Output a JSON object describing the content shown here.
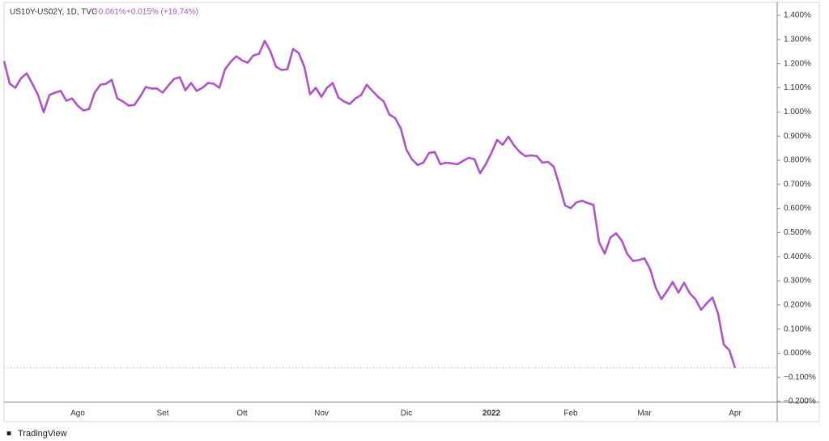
{
  "chart_data": {
    "type": "line",
    "title": "US10Y-US02Y, 1D, TVC",
    "last_value_label": "−0.061%",
    "change_label": "+0.015% (+19.74%)",
    "watermark": "TradingView",
    "color": "#b052c8",
    "grid": false,
    "ylim": [
      -0.203,
      1.454
    ],
    "yticks": [
      {
        "value": 1.4,
        "label": "1.400%"
      },
      {
        "value": 1.3,
        "label": "1.300%"
      },
      {
        "value": 1.2,
        "label": "1.200%"
      },
      {
        "value": 1.1,
        "label": "1.100%"
      },
      {
        "value": 1.0,
        "label": "1.000%"
      },
      {
        "value": 0.9,
        "label": "0.900%"
      },
      {
        "value": 0.8,
        "label": "0.800%"
      },
      {
        "value": 0.7,
        "label": "0.700%"
      },
      {
        "value": 0.6,
        "label": "0.600%"
      },
      {
        "value": 0.5,
        "label": "0.500%"
      },
      {
        "value": 0.4,
        "label": "0.400%"
      },
      {
        "value": 0.3,
        "label": "0.300%"
      },
      {
        "value": 0.2,
        "label": "0.200%"
      },
      {
        "value": 0.1,
        "label": "0.100%"
      },
      {
        "value": 0.0,
        "label": "0.000%"
      },
      {
        "value": -0.1,
        "label": "−0.100%"
      },
      {
        "value": -0.2,
        "label": "−0.200%"
      }
    ],
    "categories": [
      null,
      null,
      null,
      null,
      null,
      null,
      null,
      null,
      null,
      null,
      null,
      null,
      null,
      "Ago",
      null,
      null,
      null,
      null,
      null,
      null,
      null,
      null,
      null,
      null,
      null,
      null,
      null,
      null,
      "Set",
      null,
      null,
      null,
      null,
      null,
      null,
      null,
      null,
      null,
      null,
      null,
      null,
      null,
      "Ott",
      null,
      null,
      null,
      null,
      null,
      null,
      null,
      null,
      null,
      null,
      null,
      null,
      null,
      "Nov",
      null,
      null,
      null,
      null,
      null,
      null,
      null,
      null,
      null,
      null,
      null,
      null,
      null,
      null,
      "Dic",
      null,
      null,
      null,
      null,
      null,
      null,
      null,
      null,
      null,
      null,
      null,
      null,
      null,
      null,
      "2022",
      null,
      null,
      null,
      null,
      null,
      null,
      null,
      null,
      null,
      null,
      null,
      null,
      null,
      "Feb",
      null,
      null,
      null,
      null,
      null,
      null,
      null,
      null,
      null,
      null,
      null,
      null,
      "Mar",
      null,
      null,
      null,
      null,
      null,
      null,
      null,
      null,
      null,
      null,
      null,
      null,
      null,
      null,
      null,
      "Apr"
    ],
    "values": [
      1.211,
      1.117,
      1.1,
      1.14,
      1.16,
      1.117,
      1.07,
      0.999,
      1.07,
      1.08,
      1.087,
      1.046,
      1.056,
      1.026,
      1.006,
      1.012,
      1.08,
      1.113,
      1.117,
      1.133,
      1.056,
      1.043,
      1.026,
      1.029,
      1.063,
      1.103,
      1.097,
      1.097,
      1.08,
      1.11,
      1.137,
      1.144,
      1.09,
      1.12,
      1.087,
      1.1,
      1.12,
      1.117,
      1.1,
      1.177,
      1.208,
      1.231,
      1.214,
      1.204,
      1.234,
      1.241,
      1.295,
      1.251,
      1.187,
      1.174,
      1.177,
      1.261,
      1.244,
      1.187,
      1.073,
      1.1,
      1.063,
      1.1,
      1.12,
      1.06,
      1.043,
      1.033,
      1.056,
      1.07,
      1.113,
      1.087,
      1.063,
      1.043,
      0.989,
      0.975,
      0.932,
      0.844,
      0.803,
      0.78,
      0.79,
      0.83,
      0.834,
      0.783,
      0.79,
      0.787,
      0.783,
      0.797,
      0.81,
      0.804,
      0.746,
      0.783,
      0.83,
      0.884,
      0.864,
      0.898,
      0.861,
      0.834,
      0.817,
      0.82,
      0.817,
      0.79,
      0.793,
      0.773,
      0.696,
      0.612,
      0.601,
      0.625,
      0.632,
      0.622,
      0.615,
      0.46,
      0.413,
      0.48,
      0.497,
      0.467,
      0.41,
      0.382,
      0.386,
      0.393,
      0.349,
      0.271,
      0.224,
      0.258,
      0.295,
      0.251,
      0.292,
      0.248,
      0.224,
      0.18,
      0.207,
      0.231,
      0.164,
      0.036,
      0.012,
      -0.061
    ]
  }
}
